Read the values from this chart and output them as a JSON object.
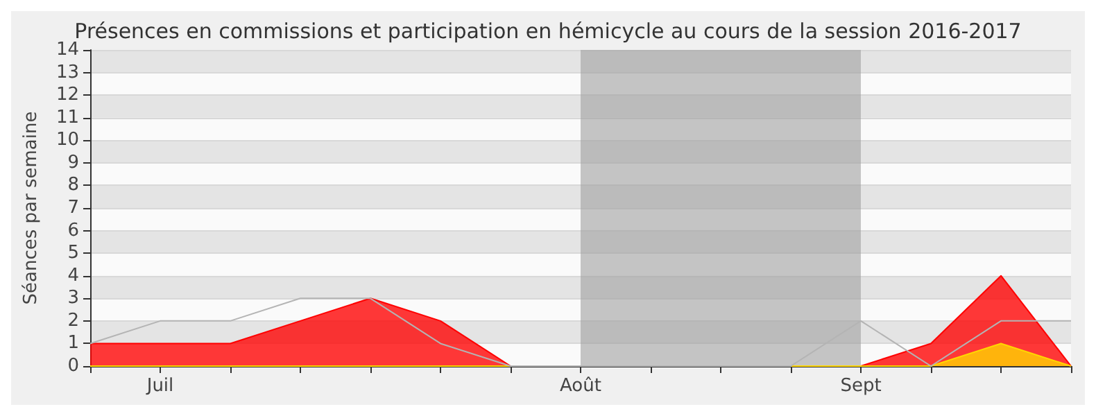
{
  "chart_data": {
    "type": "area",
    "title": "Présences en commissions et participation en hémicycle au cours de la session 2016-2017",
    "ylabel": "Séances par semaine",
    "categories": [
      null,
      "Juil",
      null,
      null,
      null,
      null,
      null,
      "Août",
      null,
      null,
      null,
      "Sept",
      null,
      null,
      null
    ],
    "ylim": [
      0,
      14
    ],
    "yticks": [
      0,
      1,
      2,
      3,
      4,
      5,
      6,
      7,
      8,
      9,
      10,
      11,
      12,
      13,
      14
    ],
    "grid": "y",
    "series": [
      {
        "type": "line",
        "color": "#b4b4b4",
        "values": [
          1,
          2,
          2,
          3,
          3,
          1,
          0,
          0,
          0,
          0,
          0,
          2,
          0,
          2,
          2
        ]
      },
      {
        "color": "#ff0000",
        "values": [
          1,
          1,
          1,
          2,
          3,
          2,
          0,
          0,
          0,
          0,
          0,
          0,
          1,
          4,
          0
        ]
      },
      {
        "color": "#ffd700",
        "values": [
          0,
          0,
          0,
          0,
          0,
          0,
          0,
          0,
          0,
          0,
          0,
          0,
          0,
          1,
          0
        ]
      }
    ],
    "bands": [
      {
        "axis": "x",
        "from": "Août",
        "to": "Sept",
        "color": "#a0a0a0"
      }
    ]
  }
}
